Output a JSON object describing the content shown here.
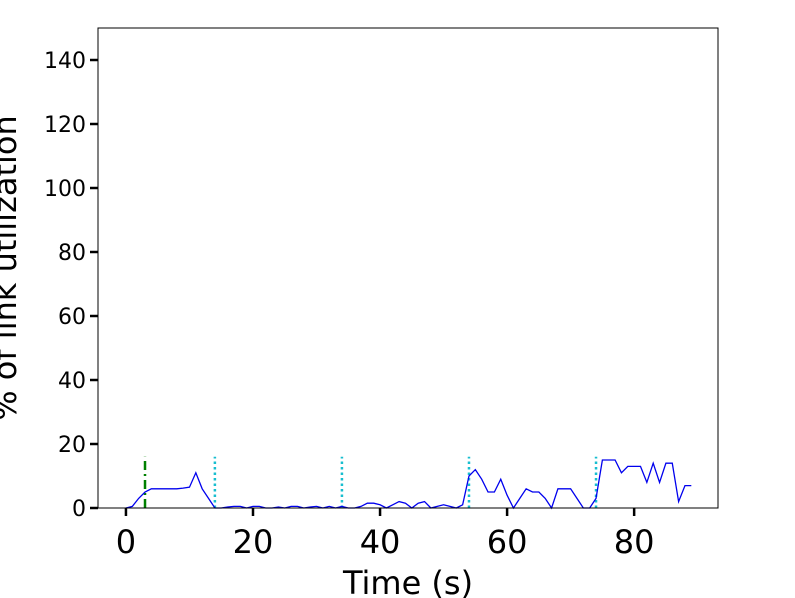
{
  "chart_data": {
    "type": "line",
    "xlabel": "Time (s)",
    "ylabel": "% of link utilization",
    "xlim": [
      -4.4,
      93.2
    ],
    "ylim": [
      0,
      150
    ],
    "xticks": [
      0,
      20,
      40,
      60,
      80
    ],
    "yticks": [
      0,
      20,
      40,
      60,
      80,
      100,
      120,
      140
    ],
    "x": [
      0,
      1,
      2,
      3,
      4,
      5,
      6,
      7,
      8,
      9,
      10,
      11,
      12,
      13,
      14,
      15,
      16,
      17,
      18,
      19,
      20,
      21,
      22,
      23,
      24,
      25,
      26,
      27,
      28,
      29,
      30,
      31,
      32,
      33,
      34,
      35,
      36,
      37,
      38,
      39,
      40,
      41,
      42,
      43,
      44,
      45,
      46,
      47,
      48,
      49,
      50,
      51,
      52,
      53,
      54,
      55,
      56,
      57,
      58,
      59,
      60,
      61,
      62,
      63,
      64,
      65,
      66,
      67,
      68,
      69,
      70,
      71,
      72,
      73,
      74,
      75,
      76,
      77,
      78,
      79,
      80,
      81,
      82,
      83,
      84,
      85,
      86,
      87,
      88,
      89
    ],
    "series": [
      {
        "color": "#0000ee",
        "values": [
          0,
          0.5,
          3,
          5,
          6,
          6,
          6,
          6,
          6,
          6.2,
          6.5,
          11,
          6,
          3,
          0,
          0,
          0.3,
          0.5,
          0.5,
          0,
          0.5,
          0.5,
          0,
          0,
          0.3,
          0,
          0.5,
          0.5,
          0,
          0.3,
          0.5,
          0,
          0.5,
          0,
          0.5,
          0,
          0,
          0.5,
          1.5,
          1.5,
          1,
          0,
          1,
          2,
          1.5,
          0,
          1.5,
          2,
          0,
          0.5,
          1,
          0.5,
          0,
          1,
          10,
          12,
          9,
          5,
          5,
          9,
          4,
          0,
          3,
          6,
          5,
          5,
          3,
          0,
          6,
          6,
          6,
          3,
          0,
          0,
          3,
          15,
          15,
          15,
          11,
          13,
          13,
          13,
          8,
          14,
          8,
          14,
          14,
          2,
          7,
          7
        ]
      }
    ],
    "vlines": [
      {
        "x": 3,
        "ymax": 16,
        "color": "#008000",
        "style": "dashdot"
      },
      {
        "x": 14,
        "ymax": 16,
        "color": "#17becf",
        "style": "dotted"
      },
      {
        "x": 34,
        "ymax": 16,
        "color": "#17becf",
        "style": "dotted"
      },
      {
        "x": 54,
        "ymax": 16,
        "color": "#17becf",
        "style": "dotted"
      },
      {
        "x": 74,
        "ymax": 16,
        "color": "#17becf",
        "style": "dotted"
      }
    ]
  }
}
